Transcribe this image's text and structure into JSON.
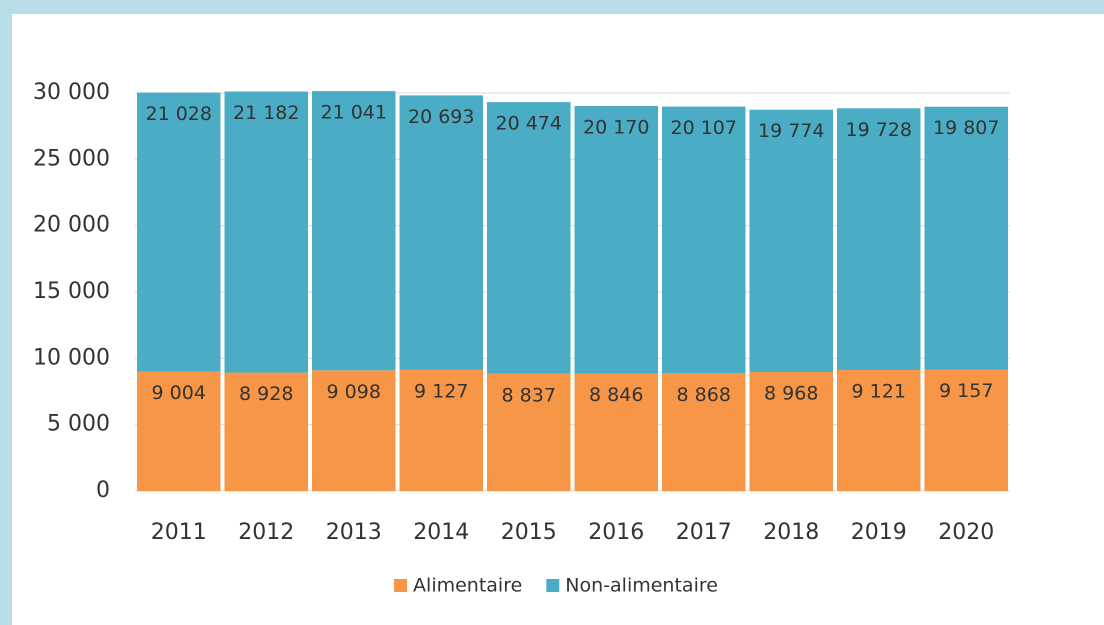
{
  "chart_data": {
    "type": "stacked_bar",
    "categories": [
      "2011",
      "2012",
      "2013",
      "2014",
      "2015",
      "2016",
      "2017",
      "2018",
      "2019",
      "2020"
    ],
    "series": [
      {
        "name": "Alimentaire",
        "color": "#f79646",
        "values": [
          9004,
          8928,
          9098,
          9127,
          8837,
          8846,
          8868,
          8968,
          9121,
          9157
        ],
        "value_labels": [
          "9 004",
          "8 928",
          "9 098",
          "9 127",
          "8 837",
          "8 846",
          "8 868",
          "8 968",
          "9 121",
          "9 157"
        ]
      },
      {
        "name": "Non-alimentaire",
        "color": "#4bacc6",
        "values": [
          21028,
          21182,
          21041,
          20693,
          20474,
          20170,
          20107,
          19774,
          19728,
          19807
        ],
        "value_labels": [
          "21 028",
          "21 182",
          "21 041",
          "20 693",
          "20 474",
          "20 170",
          "20 107",
          "19 774",
          "19 728",
          "19 807"
        ]
      }
    ],
    "ylim": [
      0,
      30000
    ],
    "yticks": [
      0,
      {
        "value": 5000,
        "label": "5 000"
      },
      {
        "value": 10000,
        "label": "10 000"
      },
      {
        "value": 15000,
        "label": "15 000"
      },
      {
        "value": 20000,
        "label": "20 000"
      },
      {
        "value": 25000,
        "label": "25 000"
      },
      {
        "value": 30000,
        "label": "30 000"
      }
    ],
    "grid": true,
    "legend": "bottom"
  }
}
